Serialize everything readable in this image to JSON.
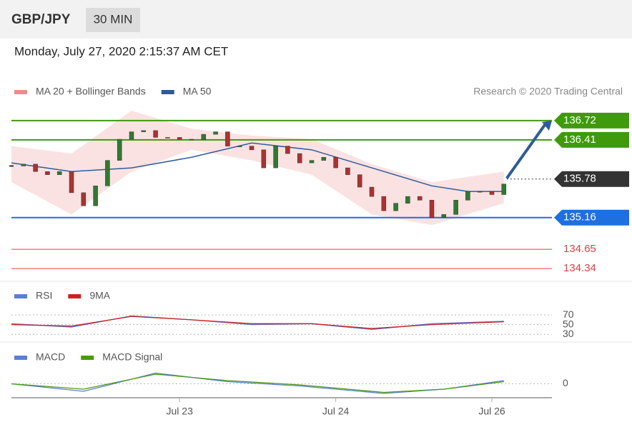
{
  "header": {
    "symbol": "GBP/JPY",
    "interval": "30 MIN",
    "datetime": "Monday, July 27, 2020 2:15:37 AM CET",
    "credit": "Research © 2020 Trading Central"
  },
  "chart_data": [
    {
      "type": "candlestick",
      "xlim": [
        0,
        90
      ],
      "ylim": [
        134.18,
        136.88
      ],
      "price": {
        "x": [
          0,
          2,
          4,
          6,
          8,
          10,
          12,
          14,
          16,
          18,
          20,
          22,
          24,
          26,
          28,
          30,
          32,
          34,
          36,
          38,
          40,
          42,
          44,
          46,
          48,
          50,
          52,
          54,
          56,
          58,
          60,
          62,
          64,
          66,
          68,
          70,
          72,
          74,
          76,
          78,
          80,
          82
        ],
        "values": [
          135.99,
          136.02,
          135.9,
          135.85,
          135.9,
          135.56,
          135.35,
          135.67,
          136.08,
          136.42,
          136.54,
          136.56,
          136.45,
          136.45,
          136.42,
          136.41,
          136.5,
          136.54,
          136.31,
          136.31,
          136.25,
          135.96,
          136.31,
          136.19,
          136.04,
          136.08,
          136.13,
          135.96,
          135.85,
          135.65,
          135.5,
          135.27,
          135.39,
          135.5,
          135.44,
          135.16,
          135.21,
          135.44,
          135.58,
          135.58,
          135.53,
          135.7
        ]
      },
      "series": [
        {
          "name": "MA 20 + Bollinger Bands",
          "color": "#f08a8a",
          "x": [
            0,
            10,
            20,
            30,
            40,
            50,
            60,
            70,
            82
          ],
          "upper": [
            136.31,
            136.19,
            136.88,
            136.59,
            136.48,
            136.42,
            136.02,
            135.73,
            135.9
          ],
          "lower": [
            135.73,
            135.21,
            135.9,
            136.25,
            136.08,
            135.85,
            135.21,
            135.04,
            135.39
          ]
        },
        {
          "name": "MA 50",
          "color": "#2e5c9a",
          "x": [
            0,
            10,
            20,
            30,
            40,
            50,
            60,
            70,
            76,
            82
          ],
          "values": [
            136.04,
            135.9,
            135.96,
            136.13,
            136.36,
            136.25,
            135.96,
            135.67,
            135.58,
            135.58
          ]
        }
      ],
      "levels": [
        {
          "value": 136.72,
          "color": "#3f9a0c",
          "label_style": "box"
        },
        {
          "value": 136.41,
          "color": "#3f9a0c",
          "label_style": "box"
        },
        {
          "value": 135.78,
          "color": "#333333",
          "label_style": "box"
        },
        {
          "value": 135.16,
          "color": "#1e6fe0",
          "label_style": "box"
        },
        {
          "value": 134.65,
          "color": "#e04040",
          "label_style": "text"
        },
        {
          "value": 134.34,
          "color": "#e04040",
          "label_style": "text"
        }
      ]
    },
    {
      "type": "line",
      "xlim": [
        0,
        90
      ],
      "ylim": [
        20,
        79
      ],
      "yticks": [
        70,
        50,
        30
      ],
      "series": [
        {
          "name": "RSI",
          "color": "#5b7fd6",
          "x": [
            0,
            10,
            20,
            30,
            40,
            50,
            60,
            70,
            82
          ],
          "values": [
            52,
            45,
            68,
            60,
            50,
            52,
            40,
            52,
            57
          ]
        },
        {
          "name": "9MA",
          "color": "#d02020",
          "x": [
            0,
            10,
            20,
            30,
            40,
            50,
            60,
            70,
            82
          ],
          "values": [
            50,
            47,
            67,
            60,
            52,
            52,
            42,
            50,
            56
          ]
        }
      ]
    },
    {
      "type": "line",
      "xlim": [
        0,
        90
      ],
      "ylim": [
        -0.25,
        0.25
      ],
      "yticks": [
        0
      ],
      "xticks": [
        {
          "value": 28,
          "label": "Jul 23"
        },
        {
          "value": 54,
          "label": "Jul 24"
        },
        {
          "value": 80,
          "label": "Jul 26"
        }
      ],
      "series": [
        {
          "name": "MACD",
          "color": "#5b7fd6",
          "x": [
            0,
            12,
            24,
            36,
            48,
            62,
            72,
            82
          ],
          "values": [
            0,
            -0.07,
            0.1,
            0.02,
            -0.02,
            -0.09,
            -0.05,
            0.03
          ]
        },
        {
          "name": "MACD Signal",
          "color": "#4a9a10",
          "x": [
            0,
            12,
            24,
            36,
            48,
            62,
            72,
            82
          ],
          "values": [
            0,
            -0.05,
            0.09,
            0.03,
            -0.01,
            -0.08,
            -0.05,
            0.02
          ]
        }
      ]
    }
  ]
}
